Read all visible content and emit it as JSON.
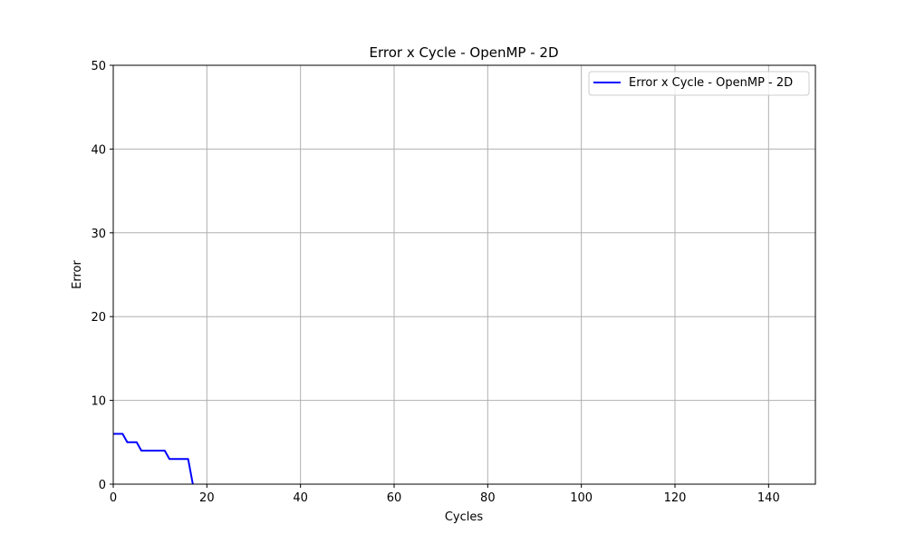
{
  "chart_data": {
    "type": "line",
    "title": "Error x Cycle - OpenMP - 2D",
    "xlabel": "Cycles",
    "ylabel": "Error",
    "xlim": [
      0,
      150
    ],
    "ylim": [
      0,
      50
    ],
    "xticks": [
      0,
      20,
      40,
      60,
      80,
      100,
      120,
      140
    ],
    "yticks": [
      0,
      10,
      20,
      30,
      40,
      50
    ],
    "grid": true,
    "legend_position": "top-right",
    "series": [
      {
        "name": "Error x Cycle - OpenMP - 2D",
        "color": "#0000ff",
        "x": [
          0,
          1,
          2,
          3,
          4,
          5,
          6,
          7,
          8,
          9,
          10,
          11,
          12,
          13,
          14,
          15,
          16,
          17
        ],
        "y": [
          6,
          6,
          6,
          5,
          5,
          5,
          4,
          4,
          4,
          4,
          4,
          4,
          3,
          3,
          3,
          3,
          3,
          0
        ]
      }
    ]
  }
}
